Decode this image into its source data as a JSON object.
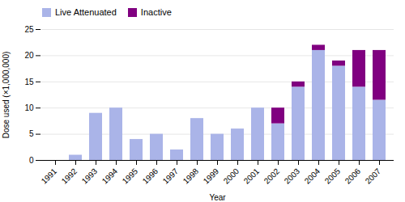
{
  "chart_data": {
    "type": "bar",
    "stacked": true,
    "categories": [
      "1991",
      "1992",
      "1993",
      "1994",
      "1995",
      "1996",
      "1997",
      "1998",
      "1999",
      "2000",
      "2001",
      "2002",
      "2003",
      "2004",
      "2005",
      "2006",
      "2007"
    ],
    "series": [
      {
        "name": "Live Attenuated",
        "color": "#aab4e8",
        "values": [
          0,
          1,
          9,
          10,
          4,
          5,
          2,
          8,
          5,
          6,
          10,
          7,
          14,
          21,
          18,
          14,
          11.5
        ]
      },
      {
        "name": "Inactive",
        "color": "#800080",
        "values": [
          0,
          0,
          0,
          0,
          0,
          0,
          0,
          0,
          0,
          0,
          0,
          3,
          1,
          1,
          1,
          7,
          9.5
        ]
      }
    ],
    "xlabel": "Year",
    "ylabel": "Dose used (×1,000,000)",
    "ylim": [
      0,
      25
    ],
    "yticks": [
      0,
      5,
      10,
      15,
      20,
      25
    ],
    "grid": true,
    "legend": "upper left"
  }
}
